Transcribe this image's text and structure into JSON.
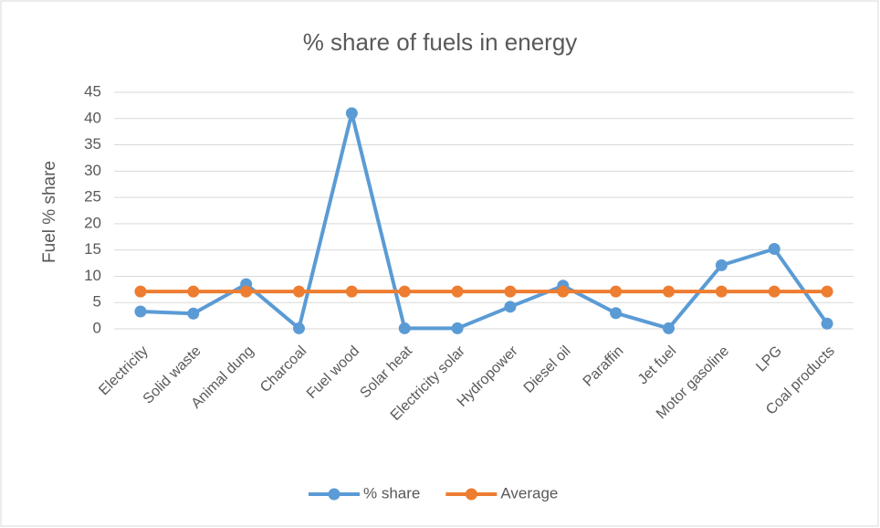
{
  "chart_data": {
    "type": "line",
    "title": "% share of fuels in energy",
    "y_label": "Fuel % share",
    "categories": [
      "Electricity",
      "Solid waste",
      "Animal dung",
      "Charcoal",
      "Fuel wood",
      "Solar heat",
      "Electricity solar",
      "Hydropower",
      "Diesel oil",
      "Paraffin",
      "Jet fuel",
      "Motor gasoline",
      "LPG",
      "Coal products"
    ],
    "series": [
      {
        "name": "% share",
        "color": "#5b9bd5",
        "values": [
          3.3,
          2.9,
          8.5,
          0.1,
          41,
          0.1,
          0.1,
          4.2,
          8.2,
          3.0,
          0.1,
          12.1,
          15.2,
          1.0
        ]
      },
      {
        "name": "Average",
        "color": "#ed7d31",
        "values": [
          7.1,
          7.1,
          7.1,
          7.1,
          7.1,
          7.1,
          7.1,
          7.1,
          7.1,
          7.1,
          7.1,
          7.1,
          7.1,
          7.1
        ]
      }
    ],
    "ylim": [
      0,
      45
    ],
    "yticks": [
      0,
      5,
      10,
      15,
      20,
      25,
      30,
      35,
      40,
      45
    ],
    "grid": true,
    "legend": "bottom"
  }
}
